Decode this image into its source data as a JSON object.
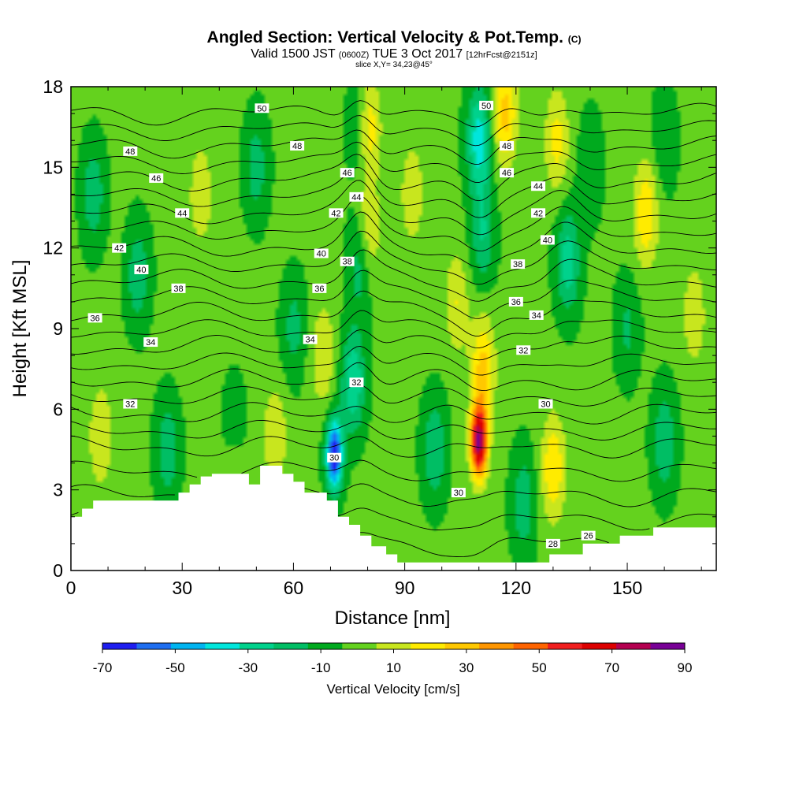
{
  "title": {
    "main": "Angled Section: Vertical Velocity & Pot.Temp.",
    "main_suffix": "(C)",
    "valid_prefix": "Valid 1500 JST",
    "valid_z": "(0600Z)",
    "valid_date": "TUE 3 Oct 2017",
    "valid_fcst": "[12hrFcst@2151z]",
    "slice": "slice X,Y= 34,23@45°"
  },
  "chart_data": {
    "type": "heatmap",
    "xlabel": "Distance [nm]",
    "ylabel": "Height [Kft MSL]",
    "xlim": [
      0,
      174
    ],
    "ylim": [
      0,
      18
    ],
    "x_ticks": [
      0,
      30,
      60,
      90,
      120,
      150
    ],
    "y_ticks": [
      0,
      3,
      6,
      9,
      12,
      15,
      18
    ],
    "colorbar": {
      "label": "Vertical Velocity [cm/s]",
      "bounds": [
        -70,
        -60,
        -50,
        -40,
        -30,
        -20,
        -10,
        0,
        10,
        20,
        30,
        40,
        50,
        60,
        70,
        80,
        90
      ],
      "tick_labels": [
        "-70",
        "-50",
        "-30",
        "-10",
        "10",
        "30",
        "50",
        "70",
        "90"
      ],
      "colors": [
        "#1e1ef0",
        "#1e6ef0",
        "#00b4f0",
        "#00e6dc",
        "#00d28c",
        "#00be64",
        "#00aa1e",
        "#64d21e",
        "#c8e61e",
        "#ffeb00",
        "#ffc800",
        "#ff9600",
        "#ff6400",
        "#f01e1e",
        "#dc0000",
        "#b40050",
        "#780096"
      ]
    },
    "background_w_cm_s": 2,
    "updrafts": [
      {
        "x_nm": 110,
        "z_kft": 4.8,
        "w_cm_s": 90
      },
      {
        "x_nm": 111,
        "z_kft": 7.5,
        "w_cm_s": 32
      },
      {
        "x_nm": 80,
        "z_kft": 16.5,
        "w_cm_s": 32
      },
      {
        "x_nm": 80,
        "z_kft": 12.5,
        "w_cm_s": 22
      },
      {
        "x_nm": 117,
        "z_kft": 17.0,
        "w_cm_s": 32
      },
      {
        "x_nm": 130,
        "z_kft": 3.8,
        "w_cm_s": 28
      },
      {
        "x_nm": 131,
        "z_kft": 16.0,
        "w_cm_s": 22
      },
      {
        "x_nm": 155,
        "z_kft": 13.3,
        "w_cm_s": 28
      },
      {
        "x_nm": 104,
        "z_kft": 10.0,
        "w_cm_s": 18
      },
      {
        "x_nm": 8,
        "z_kft": 5.0,
        "w_cm_s": 18
      },
      {
        "x_nm": 68,
        "z_kft": 8.0,
        "w_cm_s": 18
      },
      {
        "x_nm": 55,
        "z_kft": 5.0,
        "w_cm_s": 18
      },
      {
        "x_nm": 35,
        "z_kft": 14.0,
        "w_cm_s": 16
      },
      {
        "x_nm": 92,
        "z_kft": 14.0,
        "w_cm_s": 16
      },
      {
        "x_nm": 44,
        "z_kft": 3.8,
        "w_cm_s": 16
      },
      {
        "x_nm": 168,
        "z_kft": 9.5,
        "w_cm_s": 16
      }
    ],
    "downdrafts": [
      {
        "x_nm": 71,
        "z_kft": 4.3,
        "w_cm_s": -72
      },
      {
        "x_nm": 76,
        "z_kft": 7.0,
        "w_cm_s": -32
      },
      {
        "x_nm": 78,
        "z_kft": 11.5,
        "w_cm_s": -22
      },
      {
        "x_nm": 78,
        "z_kft": 16.5,
        "w_cm_s": -20
      },
      {
        "x_nm": 110,
        "z_kft": 16.0,
        "w_cm_s": -38
      },
      {
        "x_nm": 111,
        "z_kft": 12.5,
        "w_cm_s": -22
      },
      {
        "x_nm": 134,
        "z_kft": 11.5,
        "w_cm_s": -28
      },
      {
        "x_nm": 6,
        "z_kft": 14.0,
        "w_cm_s": -20
      },
      {
        "x_nm": 18,
        "z_kft": 11.0,
        "w_cm_s": -20
      },
      {
        "x_nm": 50,
        "z_kft": 15.0,
        "w_cm_s": -18
      },
      {
        "x_nm": 60,
        "z_kft": 9.0,
        "w_cm_s": -16
      },
      {
        "x_nm": 26,
        "z_kft": 4.5,
        "w_cm_s": -20
      },
      {
        "x_nm": 44,
        "z_kft": 5.0,
        "w_cm_s": -16
      },
      {
        "x_nm": 98,
        "z_kft": 4.5,
        "w_cm_s": -22
      },
      {
        "x_nm": 122,
        "z_kft": 2.5,
        "w_cm_s": -20
      },
      {
        "x_nm": 160,
        "z_kft": 4.8,
        "w_cm_s": -22
      },
      {
        "x_nm": 150,
        "z_kft": 9.0,
        "w_cm_s": -14
      },
      {
        "x_nm": 160,
        "z_kft": 16.0,
        "w_cm_s": -12
      },
      {
        "x_nm": 140,
        "z_kft": 15.0,
        "w_cm_s": -12
      }
    ],
    "terrain_kft": [
      [
        0,
        2.0
      ],
      [
        3,
        2.0
      ],
      [
        3,
        2.3
      ],
      [
        6,
        2.3
      ],
      [
        6,
        2.6
      ],
      [
        29,
        2.6
      ],
      [
        29,
        2.9
      ],
      [
        32,
        2.9
      ],
      [
        32,
        3.2
      ],
      [
        35,
        3.2
      ],
      [
        35,
        3.5
      ],
      [
        38,
        3.5
      ],
      [
        38,
        3.6
      ],
      [
        48,
        3.6
      ],
      [
        48,
        3.2
      ],
      [
        51,
        3.2
      ],
      [
        51,
        3.9
      ],
      [
        57,
        3.9
      ],
      [
        57,
        3.6
      ],
      [
        60,
        3.6
      ],
      [
        60,
        3.3
      ],
      [
        63,
        3.3
      ],
      [
        63,
        2.9
      ],
      [
        69,
        2.9
      ],
      [
        69,
        2.6
      ],
      [
        72,
        2.6
      ],
      [
        72,
        2.0
      ],
      [
        75,
        2.0
      ],
      [
        75,
        1.7
      ],
      [
        78,
        1.7
      ],
      [
        78,
        1.3
      ],
      [
        81,
        1.3
      ],
      [
        81,
        0.9
      ],
      [
        85,
        0.9
      ],
      [
        85,
        0.6
      ],
      [
        88,
        0.6
      ],
      [
        88,
        0.3
      ],
      [
        129,
        0.3
      ],
      [
        129,
        0.6
      ],
      [
        138,
        0.6
      ],
      [
        138,
        1.0
      ],
      [
        148,
        1.0
      ],
      [
        148,
        1.3
      ],
      [
        157,
        1.3
      ],
      [
        157,
        1.6
      ],
      [
        174,
        1.6
      ]
    ],
    "theta_contours_c": [
      26,
      28,
      30,
      32,
      34,
      36,
      38,
      40,
      42,
      44,
      46,
      48,
      50
    ],
    "theta_labels": [
      {
        "value": "50",
        "x_nm": 51.5,
        "z_kft": 17.2
      },
      {
        "value": "48",
        "x_nm": 16,
        "z_kft": 15.6
      },
      {
        "value": "48",
        "x_nm": 61,
        "z_kft": 15.8
      },
      {
        "value": "46",
        "x_nm": 23,
        "z_kft": 14.6
      },
      {
        "value": "46",
        "x_nm": 74.5,
        "z_kft": 14.8
      },
      {
        "value": "44",
        "x_nm": 30,
        "z_kft": 13.3
      },
      {
        "value": "44",
        "x_nm": 77,
        "z_kft": 13.9
      },
      {
        "value": "42",
        "x_nm": 13,
        "z_kft": 12.0
      },
      {
        "value": "42",
        "x_nm": 71.5,
        "z_kft": 13.3
      },
      {
        "value": "40",
        "x_nm": 19,
        "z_kft": 11.2
      },
      {
        "value": "40",
        "x_nm": 67.5,
        "z_kft": 11.8
      },
      {
        "value": "38",
        "x_nm": 29,
        "z_kft": 10.5
      },
      {
        "value": "38",
        "x_nm": 74.5,
        "z_kft": 11.5
      },
      {
        "value": "36",
        "x_nm": 6.5,
        "z_kft": 9.4
      },
      {
        "value": "36",
        "x_nm": 67,
        "z_kft": 10.5
      },
      {
        "value": "34",
        "x_nm": 21.5,
        "z_kft": 8.5
      },
      {
        "value": "34",
        "x_nm": 64.5,
        "z_kft": 8.6
      },
      {
        "value": "32",
        "x_nm": 16,
        "z_kft": 6.2
      },
      {
        "value": "32",
        "x_nm": 77,
        "z_kft": 7.0
      },
      {
        "value": "30",
        "x_nm": 71,
        "z_kft": 4.2
      },
      {
        "value": "30",
        "x_nm": 104.5,
        "z_kft": 2.9
      },
      {
        "value": "50",
        "x_nm": 112,
        "z_kft": 17.3
      },
      {
        "value": "48",
        "x_nm": 117.5,
        "z_kft": 15.8
      },
      {
        "value": "46",
        "x_nm": 117.5,
        "z_kft": 14.8
      },
      {
        "value": "44",
        "x_nm": 126,
        "z_kft": 14.3
      },
      {
        "value": "42",
        "x_nm": 126,
        "z_kft": 13.3
      },
      {
        "value": "40",
        "x_nm": 128.5,
        "z_kft": 12.3
      },
      {
        "value": "38",
        "x_nm": 120.5,
        "z_kft": 11.4
      },
      {
        "value": "36",
        "x_nm": 120,
        "z_kft": 10.0
      },
      {
        "value": "34",
        "x_nm": 125.5,
        "z_kft": 9.5
      },
      {
        "value": "32",
        "x_nm": 122,
        "z_kft": 8.2
      },
      {
        "value": "30",
        "x_nm": 128,
        "z_kft": 6.2
      },
      {
        "value": "28",
        "x_nm": 130,
        "z_kft": 1.0
      },
      {
        "value": "26",
        "x_nm": 139.5,
        "z_kft": 1.3
      }
    ]
  }
}
